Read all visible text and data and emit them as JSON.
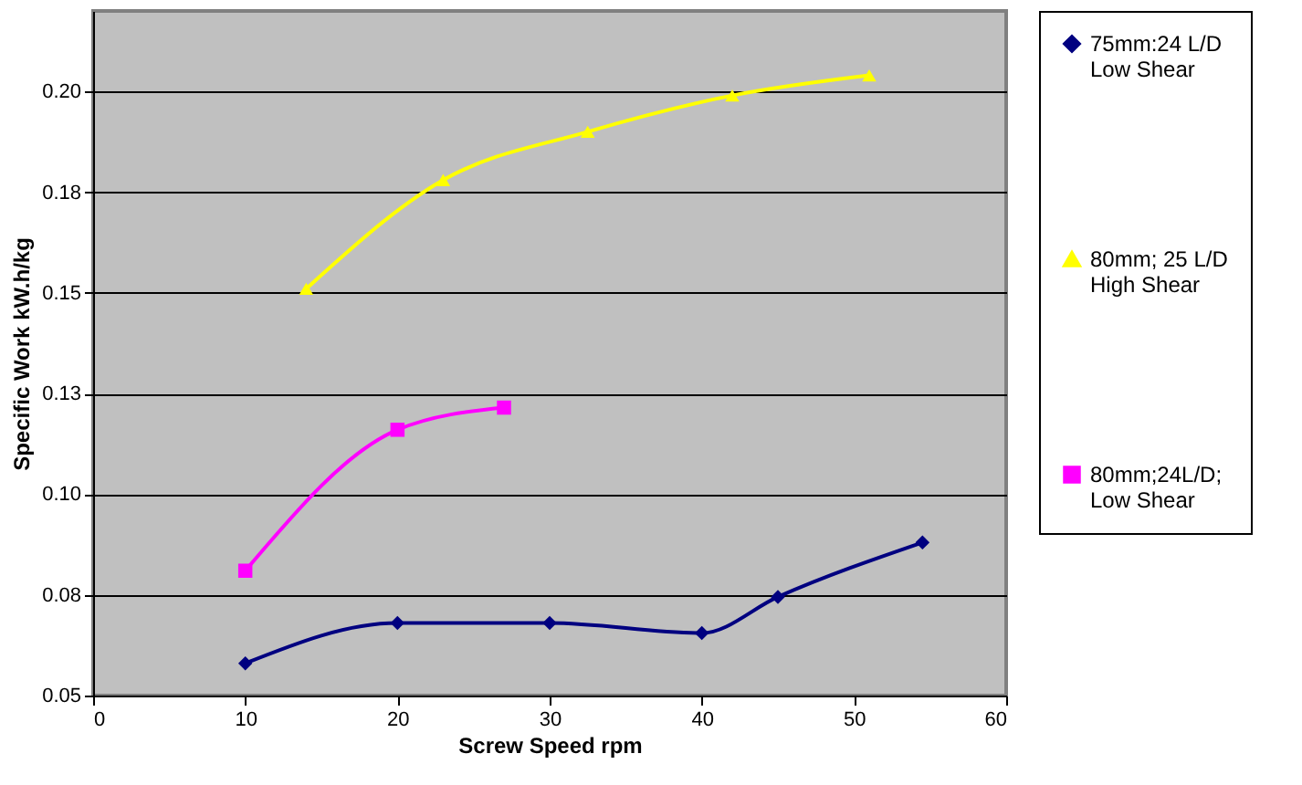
{
  "chart_data": {
    "type": "line",
    "xlabel": "Screw Speed rpm",
    "ylabel": "Specific Work kW.h/kg",
    "xlim": [
      0,
      60
    ],
    "xticks": [
      0,
      10,
      20,
      30,
      40,
      50,
      60
    ],
    "ylim": [
      0.05,
      0.22
    ],
    "yticks": [
      {
        "value": 0.05,
        "label": "0.05"
      },
      {
        "value": 0.075,
        "label": "0.08"
      },
      {
        "value": 0.1,
        "label": "0.10"
      },
      {
        "value": 0.125,
        "label": "0.13"
      },
      {
        "value": 0.15,
        "label": "0.15"
      },
      {
        "value": 0.175,
        "label": "0.18"
      },
      {
        "value": 0.2,
        "label": "0.20"
      }
    ],
    "grid": "y",
    "legend": "right",
    "series": [
      {
        "name": "75mm:24 L/D\nLow Shear",
        "color": "#000080",
        "marker": "diamond",
        "x": [
          10,
          20,
          30,
          40,
          45,
          54.5
        ],
        "values": [
          0.058,
          0.068,
          0.068,
          0.0655,
          0.0745,
          0.088
        ]
      },
      {
        "name": "80mm; 25 L/D\nHigh Shear",
        "color": "#ffff00",
        "marker": "triangle",
        "x": [
          14,
          23,
          32.5,
          42,
          51
        ],
        "values": [
          0.151,
          0.178,
          0.19,
          0.199,
          0.204
        ]
      },
      {
        "name": "80mm;24L/D;\nLow Shear",
        "color": "#ff00ff",
        "marker": "square",
        "x": [
          10,
          20,
          27
        ],
        "values": [
          0.081,
          0.116,
          0.1215
        ]
      }
    ]
  }
}
